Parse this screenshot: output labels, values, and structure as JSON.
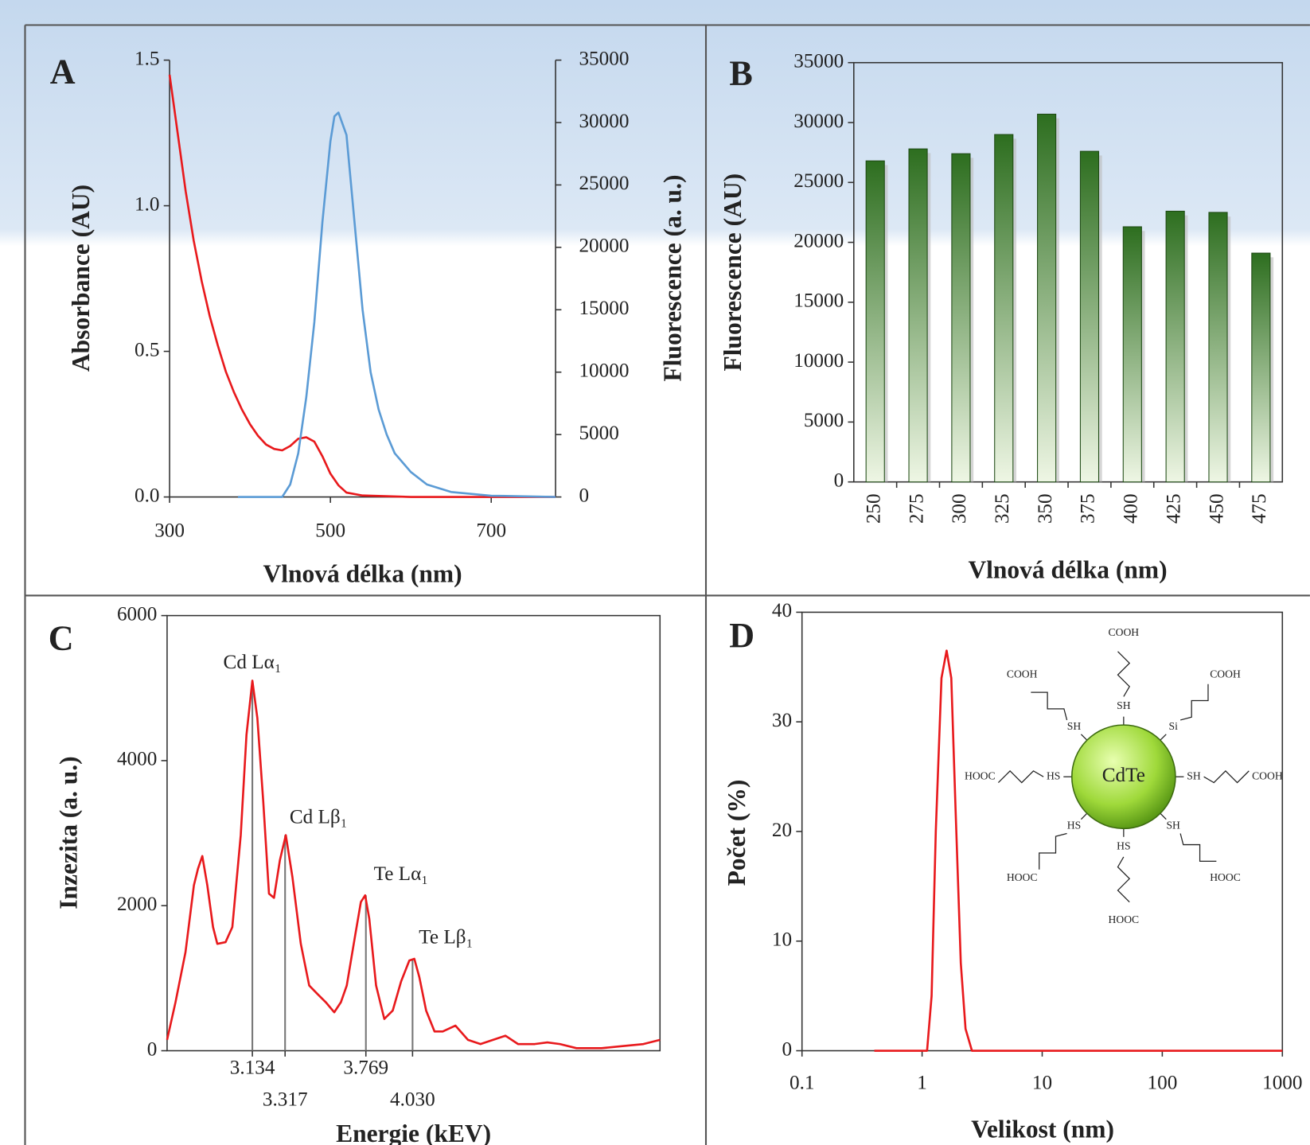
{
  "chart_data": [
    {
      "type": "line",
      "panel_label": "A",
      "xlabel": "Vlnová délka (nm)",
      "ylabel": "Absorbance (AU)",
      "y2label": "Fluorescence (a. u.)",
      "xlim": [
        300,
        780
      ],
      "xticks": [
        300,
        500,
        700
      ],
      "ylim": [
        0,
        1.5
      ],
      "yticks": [
        {
          "value": 0,
          "label": "0.0"
        },
        0.5,
        {
          "value": 1,
          "label": "1.0"
        },
        1.5
      ],
      "y2lim": [
        0,
        35000
      ],
      "y2ticks": [
        0,
        5000,
        10000,
        15000,
        20000,
        25000,
        30000,
        35000
      ],
      "series": [
        {
          "color": "#e8191c",
          "x": [
            300,
            310,
            320,
            330,
            340,
            350,
            360,
            370,
            380,
            390,
            400,
            410,
            420,
            430,
            440,
            450,
            460,
            470,
            480,
            490,
            500,
            510,
            520,
            540,
            600,
            700,
            780
          ],
          "values": [
            1.45,
            1.25,
            1.05,
            0.88,
            0.74,
            0.62,
            0.52,
            0.43,
            0.36,
            0.3,
            0.25,
            0.21,
            0.18,
            0.165,
            0.16,
            0.175,
            0.2,
            0.205,
            0.19,
            0.14,
            0.08,
            0.04,
            0.015,
            0.005,
            0,
            0,
            0
          ]
        },
        {
          "color": "#5b9bd5",
          "axis": "y2",
          "x": [
            385,
            440,
            450,
            460,
            470,
            480,
            490,
            500,
            505,
            510,
            520,
            530,
            540,
            550,
            560,
            570,
            580,
            600,
            620,
            650,
            700,
            780
          ],
          "values": [
            0,
            0,
            1000,
            3500,
            8000,
            14000,
            22000,
            28500,
            30500,
            30800,
            29000,
            22000,
            15000,
            10000,
            7000,
            5000,
            3500,
            2000,
            1000,
            400,
            100,
            0
          ]
        }
      ]
    },
    {
      "type": "bar",
      "panel_label": "B",
      "xlabel": "Vlnová délka (nm)",
      "ylabel": "Fluorescence (AU)",
      "categories": [
        "250",
        "275",
        "300",
        "325",
        "350",
        "375",
        "400",
        "425",
        "450",
        "475"
      ],
      "values": [
        26800,
        27800,
        27400,
        29000,
        30700,
        27600,
        21300,
        22600,
        22500,
        19100
      ],
      "color": "#2d6e1f",
      "ylim": [
        0,
        35000
      ],
      "yticks": [
        0,
        5000,
        10000,
        15000,
        20000,
        25000,
        30000,
        35000
      ]
    },
    {
      "type": "line",
      "panel_label": "C",
      "xlabel": "Energie (kEV)",
      "ylabel": "Inzezita (a. u.)",
      "xlim": [
        2.657,
        5.414
      ],
      "xticks": [
        3.134,
        3.317,
        3.769,
        {
          "value": 4.03,
          "label": "4.030"
        }
      ],
      "ylim": [
        0,
        6000
      ],
      "yticks": [
        0,
        2000,
        4000,
        6000
      ],
      "series": [
        {
          "color": "#e8191c",
          "x": [
            2.657,
            2.704,
            2.76,
            2.807,
            2.83,
            2.854,
            2.882,
            2.914,
            2.938,
            2.984,
            3.022,
            3.069,
            3.101,
            3.134,
            3.162,
            3.195,
            3.227,
            3.255,
            3.288,
            3.321,
            3.358,
            3.405,
            3.452,
            3.498,
            3.545,
            3.592,
            3.629,
            3.662,
            3.709,
            3.741,
            3.765,
            3.788,
            3.826,
            3.872,
            3.919,
            3.966,
            4.012,
            4.04,
            4.068,
            4.106,
            4.153,
            4.199,
            4.27,
            4.34,
            4.41,
            4.48,
            4.55,
            4.62,
            4.713,
            4.784,
            4.854,
            4.947,
            5.087,
            5.228,
            5.321,
            5.414
          ],
          "values": [
            150,
            668,
            1359,
            2281,
            2511,
            2684,
            2281,
            1705,
            1474,
            1497,
            1705,
            2972,
            4354,
            5103,
            4585,
            3433,
            2166,
            2108,
            2627,
            2972,
            2396,
            1474,
            899,
            783,
            668,
            530,
            668,
            899,
            1590,
            2051,
            2143,
            1820,
            899,
            438,
            553,
            956,
            1244,
            1267,
            1014,
            553,
            265,
            265,
            346,
            150,
            92,
            150,
            207,
            92,
            92,
            115,
            92,
            35,
            35,
            69,
            92,
            150
          ]
        }
      ],
      "annotations": [
        {
          "text": "Cd Lα₁",
          "x": 3.134,
          "y": 5103
        },
        {
          "text": "Cd Lβ₁",
          "x": 3.317,
          "y": 2972
        },
        {
          "text": "Te Lα₁",
          "x": 3.769,
          "y": 2143
        },
        {
          "text": "Te Lβ₁",
          "x": 4.03,
          "y": 1267
        }
      ]
    },
    {
      "type": "line",
      "panel_label": "D",
      "xlabel": "Velikost (nm)",
      "ylabel": "Počet (%)",
      "xscale": "log",
      "xlim": [
        0.1,
        1000
      ],
      "xticks": [
        0.1,
        1,
        10,
        100,
        1000
      ],
      "ylim": [
        0,
        40
      ],
      "yticks": [
        0,
        10,
        20,
        30,
        40
      ],
      "series": [
        {
          "color": "#e8191c",
          "x": [
            0.4,
            1.1,
            1.2,
            1.3,
            1.45,
            1.6,
            1.75,
            1.9,
            2.1,
            2.3,
            2.6,
            1000
          ],
          "values": [
            0,
            0,
            5,
            20,
            34,
            36.5,
            34,
            22,
            8,
            2,
            0,
            0
          ]
        }
      ],
      "inset": {
        "core": "CdTe",
        "ligands": [
          {
            "thiol": "SH",
            "acid": "COOH"
          },
          {
            "thiol": "Si",
            "acid": "COOH"
          },
          {
            "thiol": "SH",
            "acid": "COOH"
          },
          {
            "thiol": "SH",
            "acid": "HOOC"
          },
          {
            "thiol": "HS",
            "acid": "HOOC"
          },
          {
            "thiol": "HS",
            "acid": "HOOC"
          },
          {
            "thiol": "HS",
            "acid": "HOOC"
          },
          {
            "thiol": "SH",
            "acid": "COOH"
          }
        ]
      }
    }
  ]
}
